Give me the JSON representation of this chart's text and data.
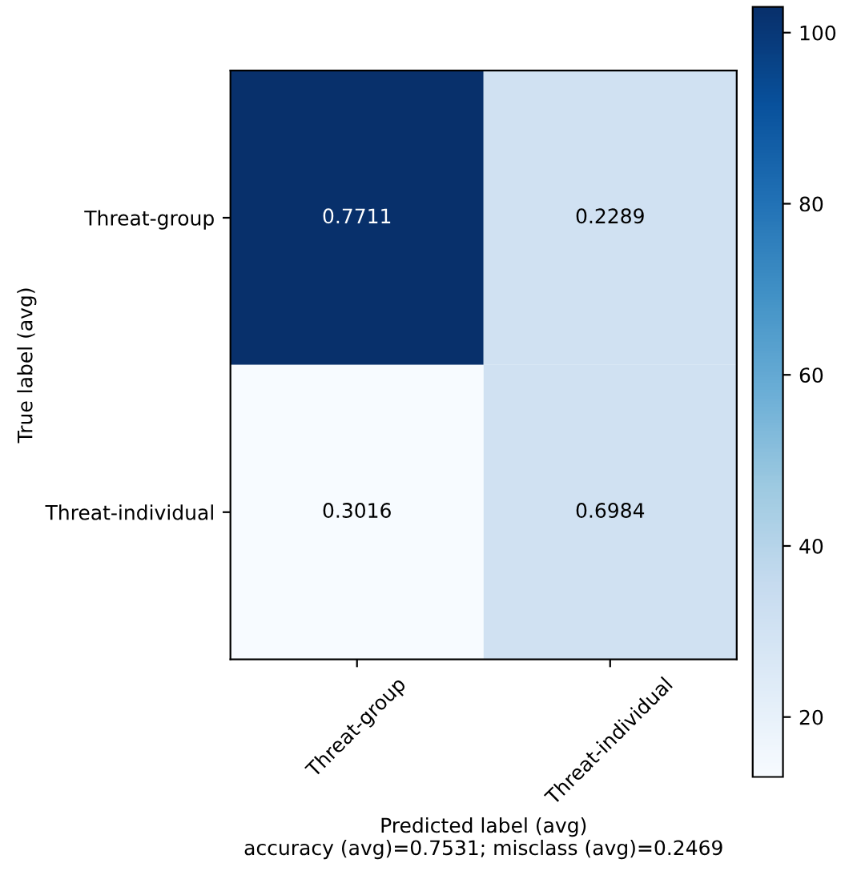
{
  "chart_data": {
    "type": "heatmap",
    "categories": [
      "Threat-group",
      "Threat-individual"
    ],
    "y_categories": [
      "Threat-group",
      "Threat-individual"
    ],
    "cells": [
      [
        103,
        31
      ],
      [
        13,
        31
      ]
    ],
    "clim": [
      13,
      103
    ],
    "cticks": [
      20,
      40,
      60,
      80,
      100
    ],
    "annotations": [
      "0.7711",
      "0.2289",
      "0.3016",
      "0.6984"
    ],
    "xlabel": "Predicted label (avg)\naccuracy (avg)=0.7531; misclass (avg)=0.2469",
    "ylabel": "True label (avg)"
  }
}
